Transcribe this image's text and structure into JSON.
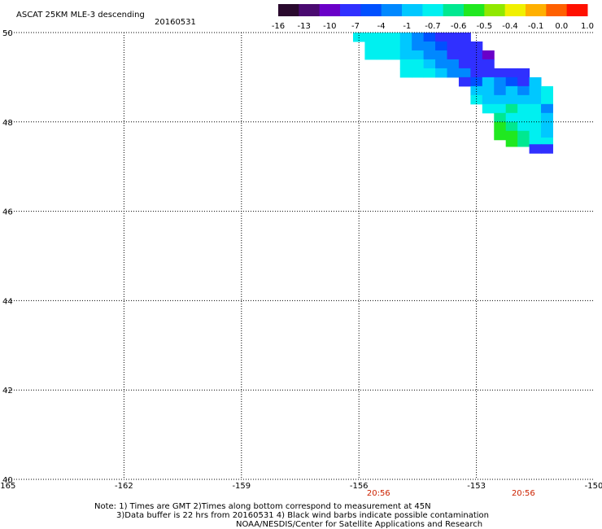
{
  "header": {
    "product": "ASCAT 25KM MLE-3 descending",
    "date": "20160531"
  },
  "colorbar": {
    "colors": [
      "#2a0a2e",
      "#4a0a70",
      "#6a00c8",
      "#3030ff",
      "#0050ff",
      "#0088ff",
      "#00c8ff",
      "#00f0f0",
      "#00e890",
      "#20e820",
      "#90e800",
      "#f0f000",
      "#ffb000",
      "#ff6000",
      "#ff1000"
    ],
    "tick_labels": [
      "-16",
      "-13",
      "-10",
      "-7",
      "-4",
      "-1",
      "-0.7",
      "-0.6",
      "-0.5",
      "-0.4",
      "-0.1",
      "0.0",
      "1.0"
    ]
  },
  "chart_data": {
    "type": "heatmap",
    "x_ticks": [
      "-165",
      "-162",
      "-159",
      "-156",
      "-153",
      "-150"
    ],
    "y_ticks": [
      "50",
      "48",
      "46",
      "44",
      "42",
      "40"
    ],
    "xlim": [
      -165,
      -150
    ],
    "ylim": [
      40,
      50
    ],
    "grid": true,
    "pass_times": [
      {
        "lon": -155.5,
        "label": "20:56"
      },
      {
        "lon": -151.8,
        "label": "20:56"
      }
    ],
    "cell_size_deg": [
      0.3,
      0.2
    ],
    "swath_cells": [
      {
        "lon": -156.0,
        "lat": 49.9,
        "color": "#00f0f0"
      },
      {
        "lon": -155.7,
        "lat": 49.9,
        "color": "#00f0f0"
      },
      {
        "lon": -155.4,
        "lat": 49.9,
        "color": "#00f0f0"
      },
      {
        "lon": -155.1,
        "lat": 49.9,
        "color": "#00f0f0"
      },
      {
        "lon": -154.8,
        "lat": 49.9,
        "color": "#00c8ff"
      },
      {
        "lon": -154.5,
        "lat": 49.9,
        "color": "#0088ff"
      },
      {
        "lon": -154.2,
        "lat": 49.9,
        "color": "#0050ff"
      },
      {
        "lon": -153.9,
        "lat": 49.9,
        "color": "#3030ff"
      },
      {
        "lon": -153.6,
        "lat": 49.9,
        "color": "#3030ff"
      },
      {
        "lon": -153.3,
        "lat": 49.9,
        "color": "#3030ff"
      },
      {
        "lon": -155.7,
        "lat": 49.7,
        "color": "#00f0f0"
      },
      {
        "lon": -155.4,
        "lat": 49.7,
        "color": "#00f0f0"
      },
      {
        "lon": -155.1,
        "lat": 49.7,
        "color": "#00f0f0"
      },
      {
        "lon": -154.8,
        "lat": 49.7,
        "color": "#00c8ff"
      },
      {
        "lon": -154.5,
        "lat": 49.7,
        "color": "#0088ff"
      },
      {
        "lon": -154.2,
        "lat": 49.7,
        "color": "#0088ff"
      },
      {
        "lon": -153.9,
        "lat": 49.7,
        "color": "#0050ff"
      },
      {
        "lon": -153.6,
        "lat": 49.7,
        "color": "#3030ff"
      },
      {
        "lon": -153.3,
        "lat": 49.7,
        "color": "#3030ff"
      },
      {
        "lon": -153.0,
        "lat": 49.7,
        "color": "#3030ff"
      },
      {
        "lon": -155.7,
        "lat": 49.5,
        "color": "#00f0f0"
      },
      {
        "lon": -155.4,
        "lat": 49.5,
        "color": "#00f0f0"
      },
      {
        "lon": -155.1,
        "lat": 49.5,
        "color": "#00f0f0"
      },
      {
        "lon": -154.8,
        "lat": 49.5,
        "color": "#00c8ff"
      },
      {
        "lon": -154.5,
        "lat": 49.5,
        "color": "#00c8ff"
      },
      {
        "lon": -154.2,
        "lat": 49.5,
        "color": "#0088ff"
      },
      {
        "lon": -153.9,
        "lat": 49.5,
        "color": "#0088ff"
      },
      {
        "lon": -153.6,
        "lat": 49.5,
        "color": "#3030ff"
      },
      {
        "lon": -153.3,
        "lat": 49.5,
        "color": "#3030ff"
      },
      {
        "lon": -153.0,
        "lat": 49.5,
        "color": "#3030ff"
      },
      {
        "lon": -152.7,
        "lat": 49.5,
        "color": "#6a00c8"
      },
      {
        "lon": -154.8,
        "lat": 49.3,
        "color": "#00f0f0"
      },
      {
        "lon": -154.5,
        "lat": 49.3,
        "color": "#00f0f0"
      },
      {
        "lon": -154.2,
        "lat": 49.3,
        "color": "#00c8ff"
      },
      {
        "lon": -153.9,
        "lat": 49.3,
        "color": "#0088ff"
      },
      {
        "lon": -153.6,
        "lat": 49.3,
        "color": "#0088ff"
      },
      {
        "lon": -153.3,
        "lat": 49.3,
        "color": "#3030ff"
      },
      {
        "lon": -153.0,
        "lat": 49.3,
        "color": "#3030ff"
      },
      {
        "lon": -152.7,
        "lat": 49.3,
        "color": "#3030ff"
      },
      {
        "lon": -154.8,
        "lat": 49.1,
        "color": "#00f0f0"
      },
      {
        "lon": -154.5,
        "lat": 49.1,
        "color": "#00f0f0"
      },
      {
        "lon": -154.2,
        "lat": 49.1,
        "color": "#00f0f0"
      },
      {
        "lon": -153.9,
        "lat": 49.1,
        "color": "#00c8ff"
      },
      {
        "lon": -153.6,
        "lat": 49.1,
        "color": "#0088ff"
      },
      {
        "lon": -153.3,
        "lat": 49.1,
        "color": "#0088ff"
      },
      {
        "lon": -153.0,
        "lat": 49.1,
        "color": "#3030ff"
      },
      {
        "lon": -152.7,
        "lat": 49.1,
        "color": "#3030ff"
      },
      {
        "lon": -152.4,
        "lat": 49.1,
        "color": "#3030ff"
      },
      {
        "lon": -152.1,
        "lat": 49.1,
        "color": "#3030ff"
      },
      {
        "lon": -151.8,
        "lat": 49.1,
        "color": "#3030ff"
      },
      {
        "lon": -153.3,
        "lat": 48.9,
        "color": "#3030ff"
      },
      {
        "lon": -153.0,
        "lat": 48.9,
        "color": "#0050ff"
      },
      {
        "lon": -152.7,
        "lat": 48.9,
        "color": "#00c8ff"
      },
      {
        "lon": -152.4,
        "lat": 48.9,
        "color": "#0088ff"
      },
      {
        "lon": -152.1,
        "lat": 48.9,
        "color": "#0050ff"
      },
      {
        "lon": -151.8,
        "lat": 48.9,
        "color": "#3030ff"
      },
      {
        "lon": -151.5,
        "lat": 48.9,
        "color": "#00c8ff"
      },
      {
        "lon": -153.0,
        "lat": 48.7,
        "color": "#00c8ff"
      },
      {
        "lon": -152.7,
        "lat": 48.7,
        "color": "#00c8ff"
      },
      {
        "lon": -152.4,
        "lat": 48.7,
        "color": "#0088ff"
      },
      {
        "lon": -152.1,
        "lat": 48.7,
        "color": "#00c8ff"
      },
      {
        "lon": -151.8,
        "lat": 48.7,
        "color": "#0088ff"
      },
      {
        "lon": -151.5,
        "lat": 48.7,
        "color": "#00c8ff"
      },
      {
        "lon": -151.2,
        "lat": 48.7,
        "color": "#00f0f0"
      },
      {
        "lon": -153.0,
        "lat": 48.5,
        "color": "#00f0f0"
      },
      {
        "lon": -152.7,
        "lat": 48.5,
        "color": "#00c8ff"
      },
      {
        "lon": -152.4,
        "lat": 48.5,
        "color": "#00c8ff"
      },
      {
        "lon": -152.1,
        "lat": 48.5,
        "color": "#00c8ff"
      },
      {
        "lon": -151.8,
        "lat": 48.5,
        "color": "#00c8ff"
      },
      {
        "lon": -151.5,
        "lat": 48.5,
        "color": "#00c8ff"
      },
      {
        "lon": -151.2,
        "lat": 48.5,
        "color": "#00f0f0"
      },
      {
        "lon": -152.7,
        "lat": 48.3,
        "color": "#00f0f0"
      },
      {
        "lon": -152.4,
        "lat": 48.3,
        "color": "#00f0f0"
      },
      {
        "lon": -152.1,
        "lat": 48.3,
        "color": "#00e890"
      },
      {
        "lon": -151.8,
        "lat": 48.3,
        "color": "#00f0f0"
      },
      {
        "lon": -151.5,
        "lat": 48.3,
        "color": "#00f0f0"
      },
      {
        "lon": -151.2,
        "lat": 48.3,
        "color": "#0088ff"
      },
      {
        "lon": -152.4,
        "lat": 48.1,
        "color": "#00e890"
      },
      {
        "lon": -152.1,
        "lat": 48.1,
        "color": "#00f0f0"
      },
      {
        "lon": -151.8,
        "lat": 48.1,
        "color": "#00f0f0"
      },
      {
        "lon": -151.5,
        "lat": 48.1,
        "color": "#00f0f0"
      },
      {
        "lon": -151.2,
        "lat": 48.1,
        "color": "#00c8ff"
      },
      {
        "lon": -152.4,
        "lat": 47.9,
        "color": "#20e820"
      },
      {
        "lon": -152.1,
        "lat": 47.9,
        "color": "#00e890"
      },
      {
        "lon": -151.8,
        "lat": 47.9,
        "color": "#00f0f0"
      },
      {
        "lon": -151.5,
        "lat": 47.9,
        "color": "#00f0f0"
      },
      {
        "lon": -151.2,
        "lat": 47.9,
        "color": "#00c8ff"
      },
      {
        "lon": -152.4,
        "lat": 47.7,
        "color": "#20e820"
      },
      {
        "lon": -152.1,
        "lat": 47.7,
        "color": "#20e820"
      },
      {
        "lon": -151.8,
        "lat": 47.7,
        "color": "#00e890"
      },
      {
        "lon": -151.5,
        "lat": 47.7,
        "color": "#00f0f0"
      },
      {
        "lon": -151.2,
        "lat": 47.7,
        "color": "#00c8ff"
      },
      {
        "lon": -152.1,
        "lat": 47.55,
        "color": "#20e820"
      },
      {
        "lon": -151.8,
        "lat": 47.55,
        "color": "#00e890"
      },
      {
        "lon": -151.5,
        "lat": 47.55,
        "color": "#00f0f0"
      },
      {
        "lon": -151.2,
        "lat": 47.55,
        "color": "#00f0f0"
      },
      {
        "lon": -151.5,
        "lat": 47.4,
        "color": "#3030ff"
      },
      {
        "lon": -151.2,
        "lat": 47.4,
        "color": "#3030ff"
      }
    ]
  },
  "notes": {
    "line1": "Note: 1) Times are GMT 2)Times along bottom correspond to measurement at 45N",
    "line2": "3)Data buffer is 22 hrs from 20160531 4) Black wind barbs indicate possible contamination",
    "line3": "NOAA/NESDIS/Center for Satellite Applications and Research"
  }
}
